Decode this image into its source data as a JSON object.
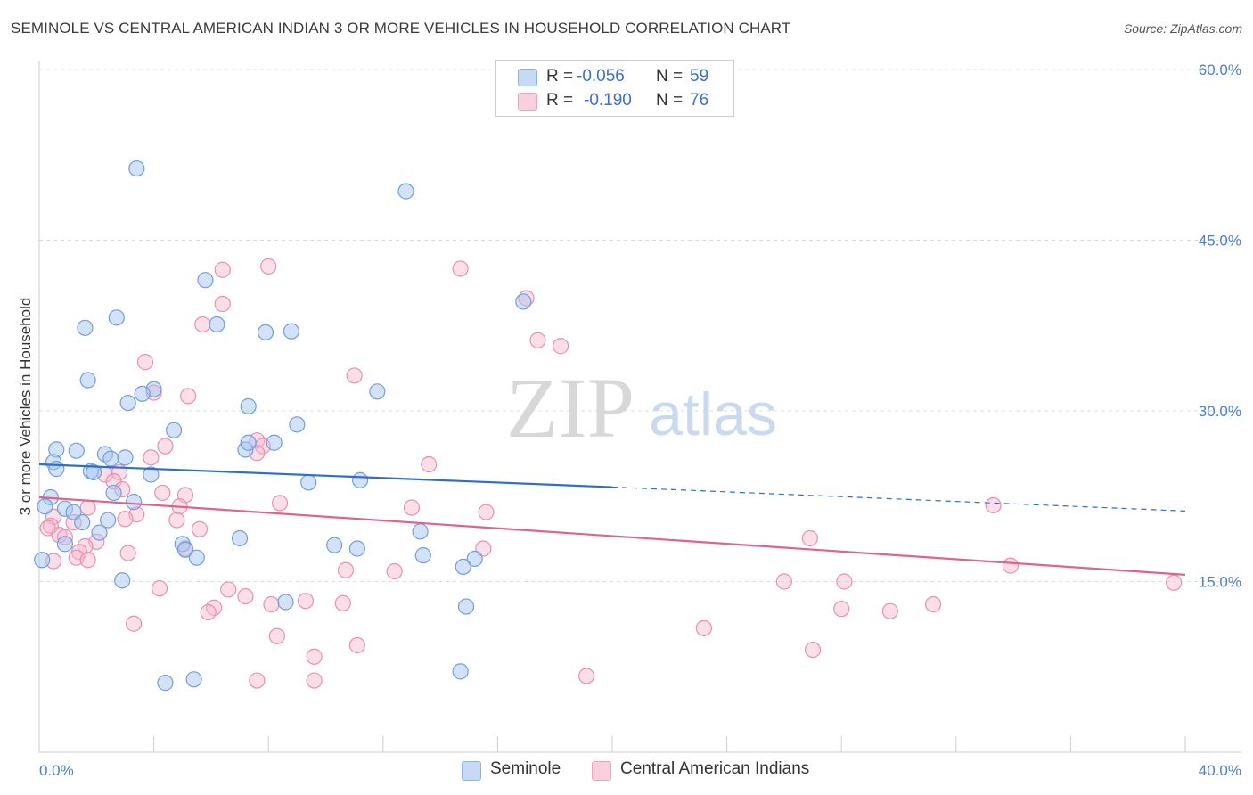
{
  "title": "SEMINOLE VS CENTRAL AMERICAN INDIAN 3 OR MORE VEHICLES IN HOUSEHOLD CORRELATION CHART",
  "source": "Source: ZipAtlas.com",
  "watermark": {
    "zip": "ZIP",
    "atlas": "atlas"
  },
  "colors": {
    "seminole_fill": "#a9c6ef",
    "seminole_stroke": "#6f9fdf",
    "seminole_line": "#2f6fcc",
    "cai_fill": "#f6b9cc",
    "cai_stroke": "#ea8fae",
    "cai_line": "#e0628e",
    "tick_text": "#4a7fd0",
    "grid": "#dddddd"
  },
  "legend": {
    "r_label": "R =",
    "n_label": "N =",
    "rows": [
      {
        "r": "-0.056",
        "n": "59"
      },
      {
        "r": "-0.190",
        "n": "76"
      }
    ]
  },
  "bottom_legend": [
    "Seminole",
    "Central American Indians"
  ],
  "chart_data": {
    "type": "scatter",
    "title": "SEMINOLE VS CENTRAL AMERICAN INDIAN 3 OR MORE VEHICLES IN HOUSEHOLD CORRELATION CHART",
    "xlabel": "",
    "ylabel": "3 or more Vehicles in Household",
    "xlim": [
      0,
      40
    ],
    "ylim": [
      0,
      60
    ],
    "x_tick_labels": [
      "0.0%",
      "40.0%"
    ],
    "y_ticks": [
      15,
      30,
      45,
      60
    ],
    "y_tick_labels": [
      "15.0%",
      "30.0%",
      "45.0%",
      "60.0%"
    ],
    "grid": true,
    "legend_position": "top-center",
    "series": [
      {
        "name": "Seminole",
        "r": -0.056,
        "n": 59,
        "trend": {
          "x_start": 0,
          "y_start": 25.3,
          "x_solid_end": 20,
          "y_solid_end": 23.3,
          "x_end": 40,
          "y_end": 21.2
        },
        "points": [
          [
            3.4,
            51.3
          ],
          [
            12.8,
            49.3
          ],
          [
            5.8,
            41.5
          ],
          [
            16.9,
            39.6
          ],
          [
            2.7,
            38.2
          ],
          [
            1.6,
            37.3
          ],
          [
            6.2,
            37.6
          ],
          [
            7.9,
            36.9
          ],
          [
            8.8,
            37.0
          ],
          [
            1.7,
            32.7
          ],
          [
            4.0,
            31.9
          ],
          [
            11.8,
            31.7
          ],
          [
            3.6,
            31.5
          ],
          [
            3.1,
            30.7
          ],
          [
            7.3,
            30.4
          ],
          [
            9.0,
            28.8
          ],
          [
            4.7,
            28.3
          ],
          [
            8.2,
            27.2
          ],
          [
            0.6,
            26.6
          ],
          [
            1.3,
            26.5
          ],
          [
            7.2,
            26.6
          ],
          [
            7.3,
            27.2
          ],
          [
            2.3,
            26.2
          ],
          [
            3.0,
            25.9
          ],
          [
            2.5,
            25.8
          ],
          [
            0.5,
            25.5
          ],
          [
            0.6,
            24.9
          ],
          [
            1.8,
            24.7
          ],
          [
            1.9,
            24.6
          ],
          [
            3.9,
            24.4
          ],
          [
            9.4,
            23.7
          ],
          [
            11.2,
            23.9
          ],
          [
            2.6,
            22.8
          ],
          [
            0.4,
            22.4
          ],
          [
            3.3,
            22.0
          ],
          [
            0.2,
            21.6
          ],
          [
            0.9,
            21.4
          ],
          [
            1.2,
            21.1
          ],
          [
            2.4,
            20.4
          ],
          [
            1.5,
            20.2
          ],
          [
            2.1,
            19.3
          ],
          [
            13.3,
            19.4
          ],
          [
            7.0,
            18.8
          ],
          [
            5.0,
            18.3
          ],
          [
            0.9,
            18.3
          ],
          [
            10.3,
            18.2
          ],
          [
            11.1,
            17.9
          ],
          [
            5.1,
            17.8
          ],
          [
            13.4,
            17.3
          ],
          [
            5.5,
            17.1
          ],
          [
            15.2,
            17.0
          ],
          [
            14.8,
            16.3
          ],
          [
            0.1,
            16.9
          ],
          [
            2.9,
            15.1
          ],
          [
            8.6,
            13.2
          ],
          [
            14.9,
            12.8
          ],
          [
            14.7,
            7.1
          ],
          [
            5.4,
            6.4
          ],
          [
            4.4,
            6.1
          ]
        ]
      },
      {
        "name": "Central American Indians",
        "r": -0.19,
        "n": 76,
        "trend": {
          "x_start": 0,
          "y_start": 22.4,
          "x_end": 40,
          "y_end": 15.6
        },
        "points": [
          [
            8.0,
            42.7
          ],
          [
            6.4,
            42.4
          ],
          [
            14.7,
            42.5
          ],
          [
            17.0,
            39.9
          ],
          [
            6.4,
            39.4
          ],
          [
            5.7,
            37.6
          ],
          [
            17.4,
            36.2
          ],
          [
            18.2,
            35.7
          ],
          [
            3.7,
            34.3
          ],
          [
            11.0,
            33.1
          ],
          [
            4.0,
            31.6
          ],
          [
            5.2,
            31.3
          ],
          [
            7.6,
            27.4
          ],
          [
            7.8,
            26.9
          ],
          [
            4.4,
            26.9
          ],
          [
            7.6,
            26.3
          ],
          [
            3.9,
            25.9
          ],
          [
            13.6,
            25.3
          ],
          [
            2.3,
            24.4
          ],
          [
            2.8,
            24.6
          ],
          [
            2.6,
            23.8
          ],
          [
            2.9,
            23.1
          ],
          [
            4.3,
            22.8
          ],
          [
            5.1,
            22.6
          ],
          [
            4.9,
            21.6
          ],
          [
            8.4,
            21.9
          ],
          [
            13.0,
            21.5
          ],
          [
            15.6,
            21.1
          ],
          [
            1.7,
            21.5
          ],
          [
            3.4,
            20.9
          ],
          [
            0.5,
            20.7
          ],
          [
            4.8,
            20.4
          ],
          [
            3.0,
            20.5
          ],
          [
            1.2,
            20.2
          ],
          [
            0.4,
            19.9
          ],
          [
            0.3,
            19.7
          ],
          [
            5.6,
            19.6
          ],
          [
            0.7,
            19.1
          ],
          [
            0.9,
            18.9
          ],
          [
            2.0,
            18.5
          ],
          [
            1.6,
            18.1
          ],
          [
            5.1,
            17.9
          ],
          [
            1.4,
            17.6
          ],
          [
            3.1,
            17.5
          ],
          [
            15.5,
            17.9
          ],
          [
            1.3,
            17.1
          ],
          [
            0.5,
            16.8
          ],
          [
            1.7,
            16.9
          ],
          [
            10.7,
            16.0
          ],
          [
            12.4,
            15.9
          ],
          [
            26.9,
            18.8
          ],
          [
            26.0,
            15.0
          ],
          [
            28.1,
            15.0
          ],
          [
            33.3,
            21.7
          ],
          [
            33.9,
            16.4
          ],
          [
            39.6,
            14.9
          ],
          [
            6.6,
            14.3
          ],
          [
            4.2,
            14.4
          ],
          [
            7.2,
            13.7
          ],
          [
            9.3,
            13.3
          ],
          [
            8.1,
            13.0
          ],
          [
            10.6,
            13.1
          ],
          [
            6.1,
            12.7
          ],
          [
            5.9,
            12.3
          ],
          [
            28.0,
            12.6
          ],
          [
            29.7,
            12.4
          ],
          [
            31.2,
            13.0
          ],
          [
            3.3,
            11.3
          ],
          [
            8.3,
            10.2
          ],
          [
            23.2,
            10.9
          ],
          [
            11.1,
            9.4
          ],
          [
            27.0,
            9.0
          ],
          [
            9.6,
            8.4
          ],
          [
            19.1,
            6.7
          ],
          [
            7.6,
            6.3
          ],
          [
            9.6,
            6.3
          ]
        ]
      }
    ]
  }
}
